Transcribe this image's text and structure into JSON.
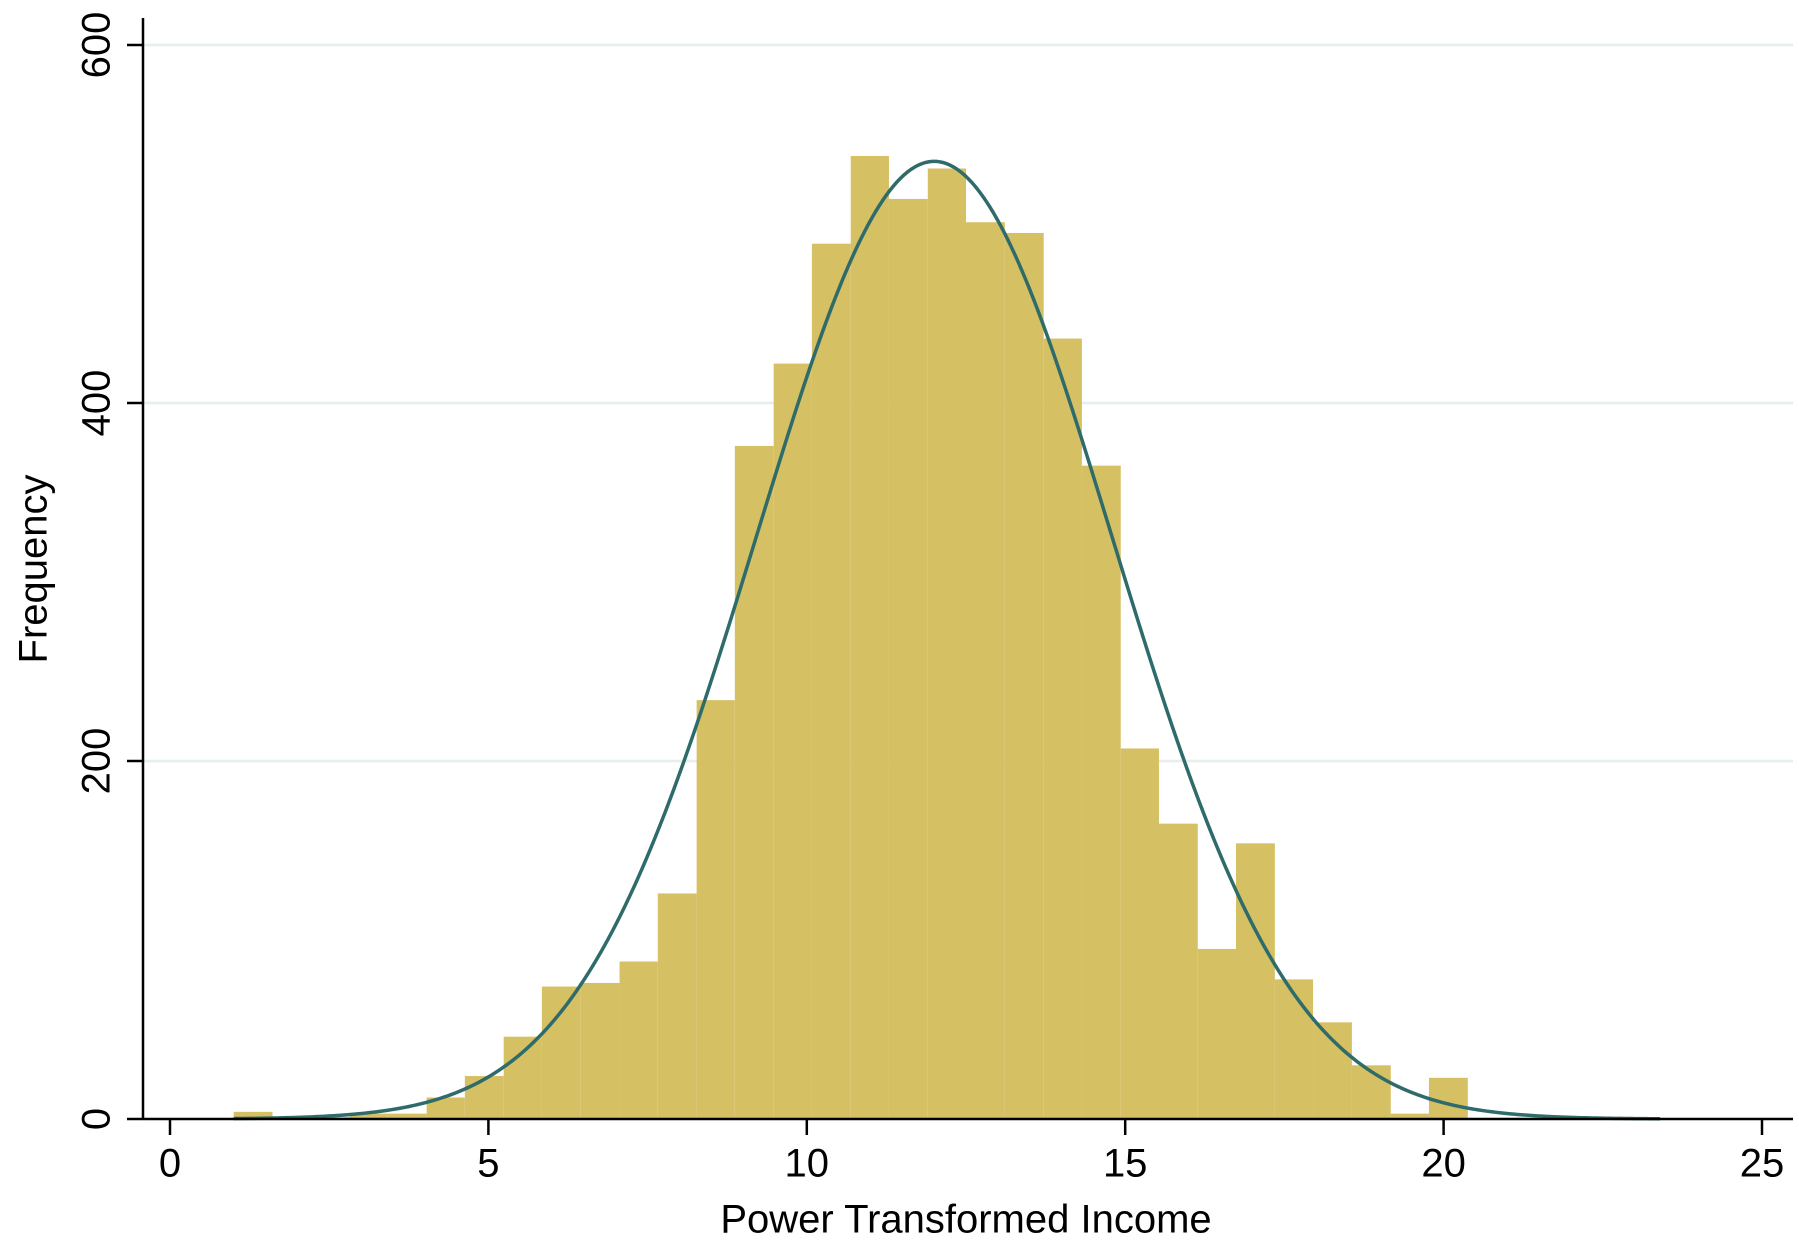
{
  "chart_data": {
    "type": "histogram",
    "x_label": "Power Transformed Income",
    "y_label": "Frequency",
    "bins": [
      1.0,
      1.61,
      2.21,
      2.82,
      3.42,
      4.03,
      4.63,
      5.24,
      5.84,
      6.45,
      7.06,
      7.66,
      8.27,
      8.87,
      9.48,
      10.08,
      10.69,
      11.29,
      11.9,
      12.5,
      13.11,
      13.72,
      14.32,
      14.93,
      15.53,
      16.14,
      16.74,
      17.35,
      17.95,
      18.56,
      19.17,
      19.77,
      20.38,
      20.98,
      21.59,
      22.19,
      22.8,
      23.4
    ],
    "values": [
      4,
      1,
      1,
      3,
      3,
      12,
      24,
      46,
      74,
      76,
      88,
      126,
      234,
      376,
      422,
      489,
      538,
      514,
      531,
      501,
      495,
      436,
      365,
      207,
      165,
      95,
      154,
      78,
      54,
      30,
      3,
      23,
      0,
      0,
      0,
      0,
      1
    ],
    "color": "#d5c063",
    "normal_fit": {
      "mean": 12.0,
      "sd": 2.8,
      "peak": 535,
      "color": "#2e6b6a"
    },
    "xlim": [
      0,
      25
    ],
    "xticks": [
      0,
      5,
      10,
      15,
      20,
      25
    ],
    "ylim": [
      0,
      600
    ],
    "yticks": [
      0,
      200,
      400,
      600
    ],
    "grid": true
  }
}
